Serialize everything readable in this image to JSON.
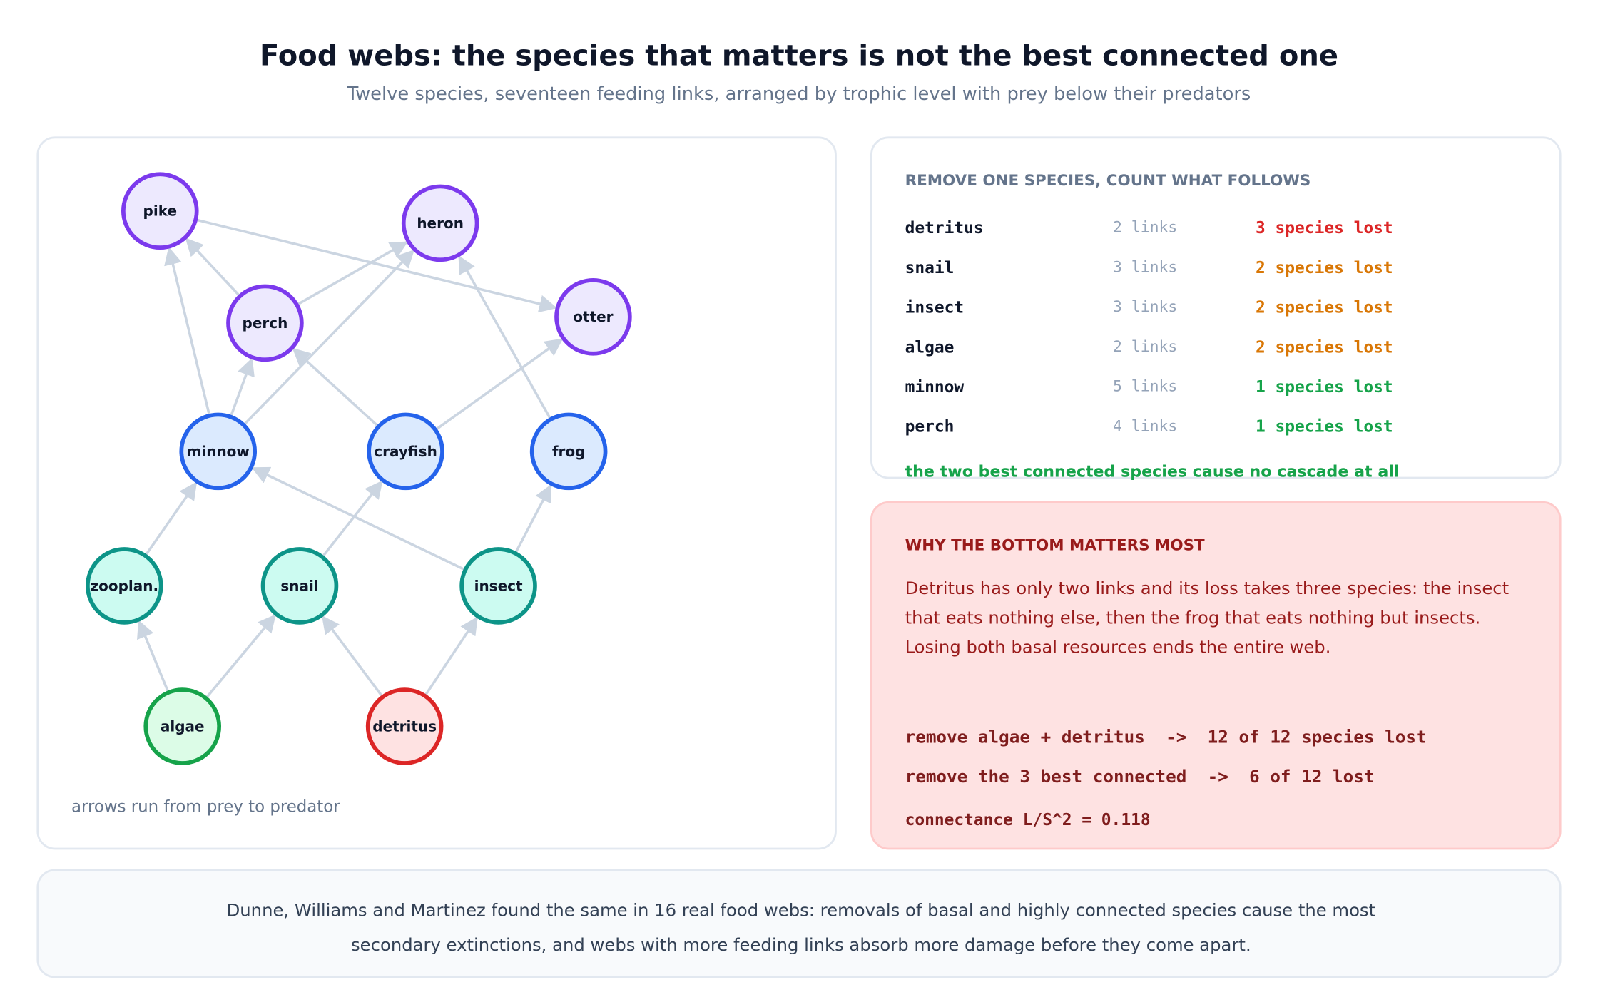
{
  "header": {
    "title": "Food webs: the species that matters is not the best connected one",
    "subtitle": "Twelve species, seventeen feeding links, arranged by trophic level with prey below their predators"
  },
  "diagram": {
    "nodes": [
      {
        "label": "pike",
        "color": "#7c3aed",
        "fill": "#ede9fe"
      },
      {
        "label": "heron",
        "color": "#7c3aed",
        "fill": "#ede9fe"
      },
      {
        "label": "perch",
        "color": "#7c3aed",
        "fill": "#ede9fe"
      },
      {
        "label": "otter",
        "color": "#7c3aed",
        "fill": "#ede9fe"
      },
      {
        "label": "minnow",
        "color": "#2563eb",
        "fill": "#dbeafe"
      },
      {
        "label": "crayfish",
        "color": "#2563eb",
        "fill": "#dbeafe"
      },
      {
        "label": "frog",
        "color": "#2563eb",
        "fill": "#dbeafe"
      },
      {
        "label": "zooplan.",
        "color": "#0d9488",
        "fill": "#ccfbf1"
      },
      {
        "label": "snail",
        "color": "#0d9488",
        "fill": "#ccfbf1"
      },
      {
        "label": "insect",
        "color": "#0d9488",
        "fill": "#ccfbf1"
      },
      {
        "label": "algae",
        "color": "#16a34a",
        "fill": "#dcfce7"
      },
      {
        "label": "detritus",
        "color": "#dc2626",
        "fill": "#fee2e2"
      }
    ],
    "note": "arrows run from prey to predator"
  },
  "cascade": {
    "heading": "REMOVE ONE SPECIES, COUNT WHAT FOLLOWS",
    "rows": [
      {
        "species": "detritus",
        "links": "2 links",
        "lost": "3 species lost",
        "color": "#dc2626"
      },
      {
        "species": "snail",
        "links": "3 links",
        "lost": "2 species lost",
        "color": "#d97706"
      },
      {
        "species": "insect",
        "links": "3 links",
        "lost": "2 species lost",
        "color": "#d97706"
      },
      {
        "species": "algae",
        "links": "2 links",
        "lost": "2 species lost",
        "color": "#d97706"
      },
      {
        "species": "minnow",
        "links": "5 links",
        "lost": "1 species lost",
        "color": "#16a34a"
      },
      {
        "species": "perch",
        "links": "4 links",
        "lost": "1 species lost",
        "color": "#16a34a"
      }
    ],
    "conclusion": "the two best connected species cause no cascade at all"
  },
  "why": {
    "heading": "WHY THE BOTTOM MATTERS MOST",
    "body": "Detritus has only two links and its loss takes three species: the insect that eats nothing else, then the frog that eats nothing but insects. Losing both basal resources ends the entire web.",
    "lines": [
      "remove algae + detritus  ->  12 of 12 species lost",
      "remove the 3 best connected  ->  6 of 12 lost",
      "connectance L/S^2 = 0.118"
    ]
  },
  "footer": {
    "text": "Dunne, Williams and Martinez found the same in 16 real food webs: removals of basal and highly connected species cause the most secondary extinctions, and webs with more feeding links absorb more damage before they come apart."
  }
}
